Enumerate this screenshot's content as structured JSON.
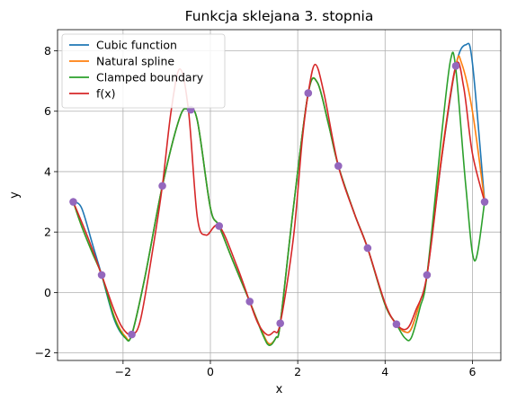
{
  "chart_data": {
    "type": "line",
    "title": "Funkcja sklejana 3. stopnia",
    "xlabel": "x",
    "ylabel": "y",
    "xlim": [
      -3.5,
      6.65
    ],
    "ylim": [
      -2.25,
      8.7
    ],
    "xticks": [
      -2,
      0,
      2,
      4,
      6
    ],
    "yticks": [
      -2,
      0,
      2,
      4,
      6,
      8
    ],
    "xtick_labels": [
      "−2",
      "0",
      "2",
      "4",
      "6"
    ],
    "ytick_labels": [
      "−2",
      "0",
      "2",
      "4",
      "6",
      "8"
    ],
    "grid": true,
    "legend_position": "top-left",
    "series": [
      {
        "name": "Cubic function",
        "color": "#1f77b4",
        "x": [
          -3.14,
          -2.95,
          -2.7,
          -2.49,
          -2.2,
          -1.95,
          -1.8,
          -1.5,
          -1.1,
          -0.7,
          -0.5,
          -0.3,
          0.0,
          0.2,
          0.5,
          0.9,
          1.2,
          1.35,
          1.5,
          1.6,
          1.9,
          2.24,
          2.45,
          2.7,
          2.93,
          3.3,
          3.6,
          4.0,
          4.26,
          4.45,
          4.6,
          4.8,
          4.96,
          5.3,
          5.62,
          5.85,
          6.0,
          6.28
        ],
        "y": [
          3.0,
          2.8,
          1.6,
          0.58,
          -0.9,
          -1.5,
          -1.39,
          0.5,
          3.53,
          5.8,
          6.05,
          5.7,
          2.8,
          2.2,
          1.1,
          -0.3,
          -1.35,
          -1.7,
          -1.5,
          -1.02,
          2.8,
          6.6,
          6.95,
          5.6,
          4.19,
          2.6,
          1.47,
          -0.4,
          -1.05,
          -1.3,
          -1.2,
          -0.3,
          0.58,
          4.5,
          7.5,
          8.2,
          7.6,
          3.0
        ]
      },
      {
        "name": "Natural spline",
        "color": "#ff7f0e",
        "x": [
          -3.14,
          -2.95,
          -2.7,
          -2.49,
          -2.2,
          -1.95,
          -1.8,
          -1.5,
          -1.1,
          -0.7,
          -0.5,
          -0.3,
          0.0,
          0.2,
          0.5,
          0.9,
          1.2,
          1.35,
          1.5,
          1.6,
          1.9,
          2.24,
          2.45,
          2.7,
          2.93,
          3.3,
          3.6,
          4.0,
          4.26,
          4.45,
          4.6,
          4.8,
          4.96,
          5.3,
          5.62,
          5.75,
          6.0,
          6.28
        ],
        "y": [
          3.0,
          2.2,
          1.3,
          0.58,
          -0.8,
          -1.45,
          -1.39,
          0.5,
          3.53,
          5.8,
          6.05,
          5.7,
          2.8,
          2.2,
          1.1,
          -0.3,
          -1.35,
          -1.7,
          -1.5,
          -1.02,
          2.8,
          6.6,
          6.95,
          5.6,
          4.19,
          2.6,
          1.47,
          -0.4,
          -1.05,
          -1.3,
          -1.2,
          -0.3,
          0.58,
          4.6,
          7.5,
          7.6,
          6.0,
          3.0
        ]
      },
      {
        "name": "Clamped boundary",
        "color": "#2ca02c",
        "x": [
          -3.14,
          -2.95,
          -2.7,
          -2.49,
          -2.2,
          -1.95,
          -1.8,
          -1.5,
          -1.1,
          -0.7,
          -0.5,
          -0.3,
          0.0,
          0.2,
          0.5,
          0.9,
          1.2,
          1.35,
          1.5,
          1.6,
          1.9,
          2.24,
          2.45,
          2.7,
          2.93,
          3.3,
          3.6,
          4.0,
          4.26,
          4.45,
          4.6,
          4.8,
          4.96,
          5.3,
          5.5,
          5.62,
          5.85,
          6.05,
          6.28
        ],
        "y": [
          3.0,
          2.2,
          1.3,
          0.58,
          -0.85,
          -1.5,
          -1.39,
          0.5,
          3.53,
          5.8,
          6.05,
          5.7,
          2.8,
          2.2,
          1.1,
          -0.3,
          -1.4,
          -1.75,
          -1.5,
          -1.02,
          2.8,
          6.6,
          6.95,
          5.6,
          4.19,
          2.6,
          1.47,
          -0.4,
          -1.05,
          -1.5,
          -1.5,
          -0.5,
          0.58,
          5.3,
          7.7,
          7.4,
          3.5,
          1.05,
          3.0
        ]
      },
      {
        "name": "f(x)",
        "color": "#d62728",
        "x": [
          -3.14,
          -2.8,
          -2.49,
          -2.2,
          -2.0,
          -1.8,
          -1.6,
          -1.3,
          -1.1,
          -0.9,
          -0.7,
          -0.5,
          -0.3,
          -0.1,
          0.2,
          0.6,
          0.9,
          1.1,
          1.3,
          1.45,
          1.6,
          1.9,
          2.1,
          2.24,
          2.4,
          2.6,
          2.93,
          3.3,
          3.6,
          4.0,
          4.26,
          4.5,
          4.7,
          4.96,
          5.3,
          5.62,
          5.8,
          6.0,
          6.28
        ],
        "y": [
          3.0,
          1.8,
          0.58,
          -0.6,
          -1.2,
          -1.39,
          -0.9,
          1.6,
          3.53,
          6.0,
          7.4,
          6.0,
          2.5,
          1.9,
          2.2,
          0.9,
          -0.3,
          -1.05,
          -1.4,
          -1.3,
          -1.02,
          1.8,
          5.0,
          6.6,
          7.55,
          6.6,
          4.19,
          2.6,
          1.47,
          -0.35,
          -1.05,
          -1.2,
          -0.6,
          0.58,
          4.5,
          7.5,
          6.8,
          4.6,
          3.0
        ]
      }
    ],
    "points": {
      "color": "#9467bd",
      "x": [
        -3.14,
        -2.49,
        -1.8,
        -1.1,
        -0.45,
        0.2,
        0.9,
        1.6,
        2.24,
        2.93,
        3.6,
        4.26,
        4.96,
        5.62,
        6.28
      ],
      "y": [
        3.0,
        0.58,
        -1.39,
        3.53,
        6.05,
        2.2,
        -0.3,
        -1.02,
        6.6,
        4.19,
        1.47,
        -1.05,
        0.58,
        7.5,
        3.0
      ]
    }
  }
}
